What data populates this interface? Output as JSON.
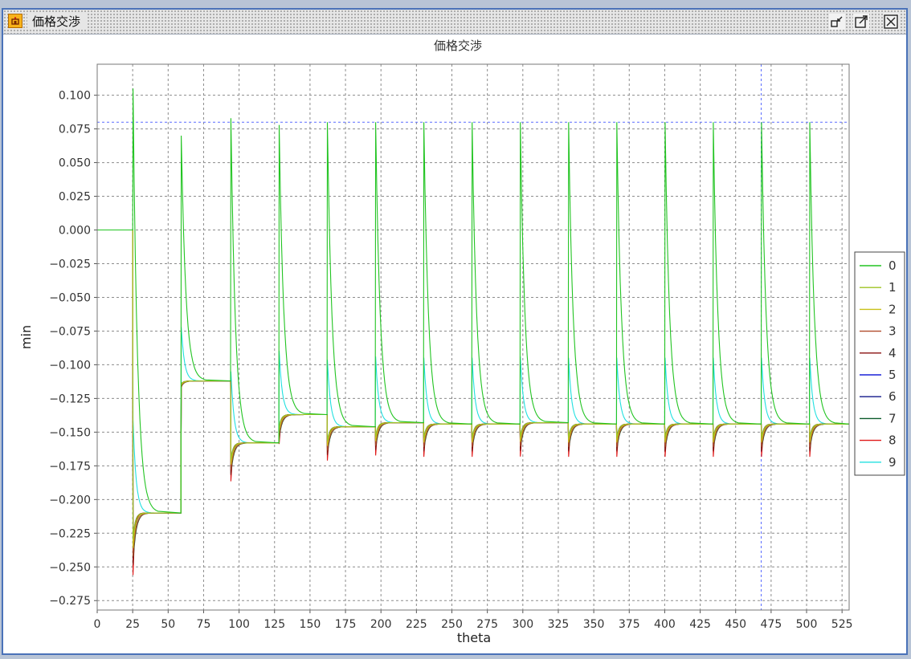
{
  "window": {
    "title": "価格交渉",
    "controls": [
      "minimize-icon",
      "maximize-icon",
      "close-icon"
    ]
  },
  "colors": {
    "series": [
      "#22c422",
      "#9ec322",
      "#c8c017",
      "#b04a2a",
      "#8a1010",
      "#1a22d8",
      "#12188a",
      "#0a5a2a",
      "#e01818",
      "#22e0e0"
    ],
    "grid": "#8c8c8c",
    "ref_line": "#5a6cff"
  },
  "chart_data": {
    "type": "line",
    "title": "価格交渉",
    "xlabel": "theta",
    "ylabel": "min",
    "xlim": [
      0,
      530
    ],
    "ylim": [
      -0.282,
      0.123
    ],
    "xticks": [
      0,
      25,
      50,
      75,
      100,
      125,
      150,
      175,
      200,
      225,
      250,
      275,
      300,
      325,
      350,
      375,
      400,
      425,
      450,
      475,
      500,
      525
    ],
    "yticks": [
      0.1,
      0.075,
      0.05,
      0.025,
      0.0,
      -0.025,
      -0.05,
      -0.075,
      -0.1,
      -0.125,
      -0.15,
      -0.175,
      -0.2,
      -0.225,
      -0.25,
      -0.275
    ],
    "ytick_labels": [
      "0.100",
      "0.075",
      "0.050",
      "0.025",
      "0.000",
      "−0.025",
      "−0.050",
      "−0.075",
      "−0.100",
      "−0.125",
      "−0.150",
      "−0.175",
      "−0.200",
      "−0.225",
      "−0.250",
      "−0.275"
    ],
    "grid": true,
    "legend": {
      "placement": "right",
      "entries": [
        "0",
        "1",
        "2",
        "3",
        "4",
        "5",
        "6",
        "7",
        "8",
        "9"
      ]
    },
    "reference_lines": {
      "horizontal": [
        0.08
      ],
      "vertical": [
        468
      ]
    },
    "initial_value": 0.0,
    "spikes": [
      {
        "x": 25,
        "peak": 0.105,
        "settle": -0.21,
        "trough": -0.265
      },
      {
        "x": 59,
        "peak": 0.07,
        "settle": -0.112,
        "trough": -0.118
      },
      {
        "x": 94,
        "peak": 0.083,
        "settle": -0.158,
        "trough": -0.192
      },
      {
        "x": 128,
        "peak": 0.078,
        "settle": -0.137,
        "trough": -0.163
      },
      {
        "x": 162,
        "peak": 0.08,
        "settle": -0.146,
        "trough": -0.176
      },
      {
        "x": 196,
        "peak": 0.08,
        "settle": -0.143,
        "trough": -0.172
      },
      {
        "x": 230,
        "peak": 0.08,
        "settle": -0.144,
        "trough": -0.173
      },
      {
        "x": 264,
        "peak": 0.08,
        "settle": -0.144,
        "trough": -0.173
      },
      {
        "x": 298,
        "peak": 0.08,
        "settle": -0.143,
        "trough": -0.173
      },
      {
        "x": 332,
        "peak": 0.08,
        "settle": -0.144,
        "trough": -0.173
      },
      {
        "x": 366,
        "peak": 0.08,
        "settle": -0.144,
        "trough": -0.173
      },
      {
        "x": 400,
        "peak": 0.08,
        "settle": -0.144,
        "trough": -0.173
      },
      {
        "x": 434,
        "peak": 0.08,
        "settle": -0.144,
        "trough": -0.173
      },
      {
        "x": 468,
        "peak": 0.08,
        "settle": -0.144,
        "trough": -0.173
      },
      {
        "x": 502,
        "peak": 0.08,
        "settle": -0.144,
        "trough": -0.173
      }
    ],
    "series": [
      {
        "name": "0",
        "color": "#22c422"
      },
      {
        "name": "1",
        "color": "#9ec322"
      },
      {
        "name": "2",
        "color": "#c8c017"
      },
      {
        "name": "3",
        "color": "#b04a2a"
      },
      {
        "name": "4",
        "color": "#8a1010"
      },
      {
        "name": "5",
        "color": "#1a22d8"
      },
      {
        "name": "6",
        "color": "#12188a"
      },
      {
        "name": "7",
        "color": "#0a5a2a"
      },
      {
        "name": "8",
        "color": "#e01818"
      },
      {
        "name": "9",
        "color": "#22e0e0"
      }
    ]
  }
}
